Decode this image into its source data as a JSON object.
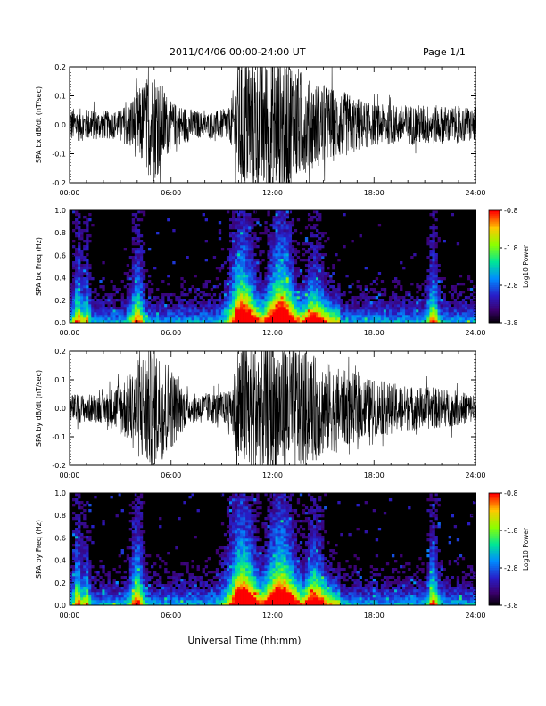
{
  "header": {
    "title": "2011/04/06  00:00-24:00 UT",
    "page": "Page 1/1"
  },
  "chart_data": [
    {
      "type": "line",
      "ylabel": "SPA bx dB/dt (nT/sec)",
      "xlim": [
        0,
        24
      ],
      "ylim": [
        -0.2,
        0.2
      ],
      "x_ticks": [
        "00:00",
        "06:00",
        "12:00",
        "18:00",
        "24:00"
      ],
      "y_ticks": [
        "-0.2",
        "-0.1",
        "0.0",
        "0.1",
        "0.2"
      ],
      "amplitude_envelope": [
        {
          "t": 0,
          "amp": 0.06
        },
        {
          "t": 2,
          "amp": 0.05
        },
        {
          "t": 3,
          "amp": 0.05
        },
        {
          "t": 4,
          "amp": 0.12
        },
        {
          "t": 5,
          "amp": 0.2
        },
        {
          "t": 6,
          "amp": 0.08
        },
        {
          "t": 8,
          "amp": 0.04
        },
        {
          "t": 9.5,
          "amp": 0.06
        },
        {
          "t": 10,
          "amp": 0.25
        },
        {
          "t": 13,
          "amp": 0.25
        },
        {
          "t": 14,
          "amp": 0.16
        },
        {
          "t": 16,
          "amp": 0.12
        },
        {
          "t": 18,
          "amp": 0.07
        },
        {
          "t": 21,
          "amp": 0.07
        },
        {
          "t": 24,
          "amp": 0.06
        }
      ]
    },
    {
      "type": "heatmap",
      "ylabel": "SPA bx Freq (Hz)",
      "colorbar_label": "Log10 Power",
      "colorbar_ticks": [
        "-0.8",
        "-1.8",
        "-2.8",
        "-3.8"
      ],
      "clim": [
        -3.8,
        -0.8
      ],
      "xlim": [
        0,
        24
      ],
      "ylim": [
        0,
        1.0
      ],
      "x_ticks": [
        "00:00",
        "06:00",
        "12:00",
        "18:00",
        "24:00"
      ],
      "y_ticks": [
        "0.0",
        "0.2",
        "0.4",
        "0.6",
        "0.8",
        "1.0"
      ],
      "activity_bands": [
        {
          "t": 0.5,
          "width": 0.3,
          "strength": 0.6
        },
        {
          "t": 1.0,
          "width": 0.2,
          "strength": 0.5
        },
        {
          "t": 4.0,
          "width": 0.4,
          "strength": 0.6
        },
        {
          "t": 10.2,
          "width": 0.8,
          "strength": 0.9
        },
        {
          "t": 12.5,
          "width": 0.8,
          "strength": 0.95
        },
        {
          "t": 14.5,
          "width": 0.6,
          "strength": 0.5
        },
        {
          "t": 21.5,
          "width": 0.3,
          "strength": 0.6
        }
      ]
    },
    {
      "type": "line",
      "ylabel": "SPA by dB/dt (nT/sec)",
      "xlim": [
        0,
        24
      ],
      "ylim": [
        -0.2,
        0.2
      ],
      "x_ticks": [
        "00:00",
        "06:00",
        "12:00",
        "18:00",
        "24:00"
      ],
      "y_ticks": [
        "-0.2",
        "-0.1",
        "0.0",
        "0.1",
        "0.2"
      ],
      "amplitude_envelope": [
        {
          "t": 0,
          "amp": 0.05
        },
        {
          "t": 2,
          "amp": 0.05
        },
        {
          "t": 3.5,
          "amp": 0.12
        },
        {
          "t": 4.5,
          "amp": 0.22
        },
        {
          "t": 5.5,
          "amp": 0.2
        },
        {
          "t": 7,
          "amp": 0.05
        },
        {
          "t": 9.5,
          "amp": 0.06
        },
        {
          "t": 10,
          "amp": 0.25
        },
        {
          "t": 13,
          "amp": 0.25
        },
        {
          "t": 14,
          "amp": 0.2
        },
        {
          "t": 16,
          "amp": 0.14
        },
        {
          "t": 18,
          "amp": 0.1
        },
        {
          "t": 20,
          "amp": 0.08
        },
        {
          "t": 22,
          "amp": 0.07
        },
        {
          "t": 24,
          "amp": 0.05
        }
      ]
    },
    {
      "type": "heatmap",
      "ylabel": "SPA by Freq (Hz)",
      "colorbar_label": "Log10 Power",
      "colorbar_ticks": [
        "-0.8",
        "-1.8",
        "-2.8",
        "-3.8"
      ],
      "clim": [
        -3.8,
        -0.8
      ],
      "xlim": [
        0,
        24
      ],
      "ylim": [
        0,
        1.0
      ],
      "x_ticks": [
        "00:00",
        "06:00",
        "12:00",
        "18:00",
        "24:00"
      ],
      "y_ticks": [
        "0.0",
        "0.2",
        "0.4",
        "0.6",
        "0.8",
        "1.0"
      ],
      "activity_bands": [
        {
          "t": 0.5,
          "width": 0.3,
          "strength": 0.6
        },
        {
          "t": 1.0,
          "width": 0.2,
          "strength": 0.5
        },
        {
          "t": 4.0,
          "width": 0.4,
          "strength": 0.7
        },
        {
          "t": 10.2,
          "width": 0.9,
          "strength": 0.95
        },
        {
          "t": 12.5,
          "width": 0.9,
          "strength": 0.95
        },
        {
          "t": 14.5,
          "width": 0.6,
          "strength": 0.6
        },
        {
          "t": 21.5,
          "width": 0.3,
          "strength": 0.6
        }
      ]
    }
  ],
  "footer": {
    "xlabel": "Universal Time (hh:mm)"
  }
}
